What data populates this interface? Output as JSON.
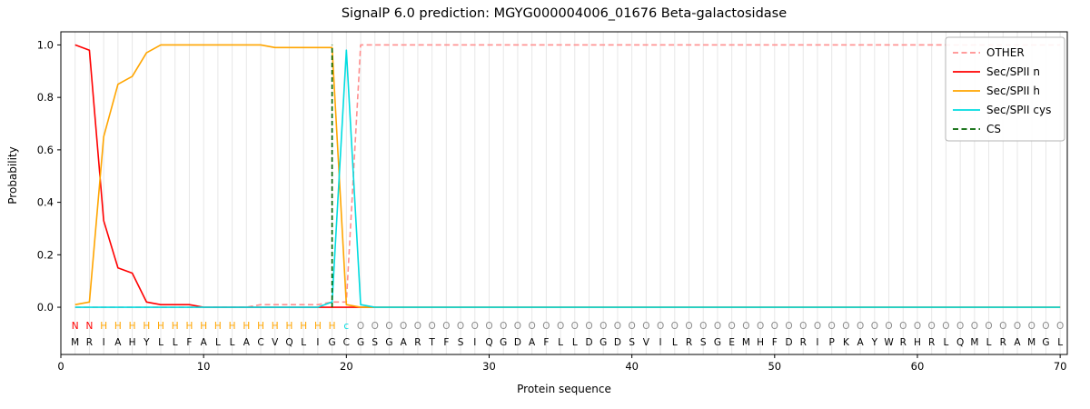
{
  "chart_data": {
    "type": "line",
    "title": "SignalP 6.0 prediction: MGYG000004006_01676 Beta-galactosidase",
    "xlabel": "Protein sequence",
    "ylabel": "Probability",
    "xlim": [
      0,
      70.5
    ],
    "ylim": [
      0.0,
      1.0
    ],
    "xticks": [
      0,
      10,
      20,
      30,
      40,
      50,
      60,
      70
    ],
    "yticks": [
      0.0,
      0.2,
      0.4,
      0.6,
      0.8,
      1.0
    ],
    "grid": "light vertical gridline at every residue position",
    "legend_position": "upper right",
    "x": [
      1,
      2,
      3,
      4,
      5,
      6,
      7,
      8,
      9,
      10,
      11,
      12,
      13,
      14,
      15,
      16,
      17,
      18,
      19,
      20,
      21,
      22,
      23,
      24,
      25,
      26,
      27,
      28,
      29,
      30,
      31,
      32,
      33,
      34,
      35,
      36,
      37,
      38,
      39,
      40,
      41,
      42,
      43,
      44,
      45,
      46,
      47,
      48,
      49,
      50,
      51,
      52,
      53,
      54,
      55,
      56,
      57,
      58,
      59,
      60,
      61,
      62,
      63,
      64,
      65,
      66,
      67,
      68,
      69,
      70
    ],
    "series": [
      {
        "name": "OTHER",
        "color": "#ff8f8f",
        "style": "dashed",
        "values": [
          0,
          0,
          0,
          0,
          0,
          0,
          0,
          0,
          0,
          0,
          0,
          0,
          0,
          0.01,
          0.01,
          0.01,
          0.01,
          0.01,
          0.02,
          0.02,
          1,
          1,
          1,
          1,
          1,
          1,
          1,
          1,
          1,
          1,
          1,
          1,
          1,
          1,
          1,
          1,
          1,
          1,
          1,
          1,
          1,
          1,
          1,
          1,
          1,
          1,
          1,
          1,
          1,
          1,
          1,
          1,
          1,
          1,
          1,
          1,
          1,
          1,
          1,
          1,
          1,
          1,
          1,
          1,
          1,
          1,
          1,
          1,
          1,
          1
        ]
      },
      {
        "name": "Sec/SPII n",
        "color": "#ff0000",
        "style": "solid",
        "values": [
          1.0,
          0.98,
          0.33,
          0.15,
          0.13,
          0.02,
          0.01,
          0.01,
          0.01,
          0,
          0,
          0,
          0,
          0,
          0,
          0,
          0,
          0,
          0,
          0,
          0,
          0,
          0,
          0,
          0,
          0,
          0,
          0,
          0,
          0,
          0,
          0,
          0,
          0,
          0,
          0,
          0,
          0,
          0,
          0,
          0,
          0,
          0,
          0,
          0,
          0,
          0,
          0,
          0,
          0,
          0,
          0,
          0,
          0,
          0,
          0,
          0,
          0,
          0,
          0,
          0,
          0,
          0,
          0,
          0,
          0,
          0,
          0,
          0,
          0
        ]
      },
      {
        "name": "Sec/SPII h",
        "color": "#ffa500",
        "style": "solid",
        "values": [
          0.01,
          0.02,
          0.65,
          0.85,
          0.88,
          0.97,
          1,
          1,
          1,
          1,
          1,
          1,
          1,
          1,
          0.99,
          0.99,
          0.99,
          0.99,
          0.99,
          0.01,
          0,
          0,
          0,
          0,
          0,
          0,
          0,
          0,
          0,
          0,
          0,
          0,
          0,
          0,
          0,
          0,
          0,
          0,
          0,
          0,
          0,
          0,
          0,
          0,
          0,
          0,
          0,
          0,
          0,
          0,
          0,
          0,
          0,
          0,
          0,
          0,
          0,
          0,
          0,
          0,
          0,
          0,
          0,
          0,
          0,
          0,
          0,
          0,
          0,
          0
        ]
      },
      {
        "name": "Sec/SPII cys",
        "color": "#00dce0",
        "style": "solid",
        "values": [
          0,
          0,
          0,
          0,
          0,
          0,
          0,
          0,
          0,
          0,
          0,
          0,
          0,
          0,
          0,
          0,
          0,
          0,
          0.02,
          0.98,
          0.01,
          0,
          0,
          0,
          0,
          0,
          0,
          0,
          0,
          0,
          0,
          0,
          0,
          0,
          0,
          0,
          0,
          0,
          0,
          0,
          0,
          0,
          0,
          0,
          0,
          0,
          0,
          0,
          0,
          0,
          0,
          0,
          0,
          0,
          0,
          0,
          0,
          0,
          0,
          0,
          0,
          0,
          0,
          0,
          0,
          0,
          0,
          0,
          0,
          0
        ]
      }
    ],
    "cs_marker": {
      "name": "CS",
      "color": "#006400",
      "style": "dashed",
      "x": 19,
      "y_span": [
        0.0,
        1.0
      ]
    },
    "annotation_rows": {
      "region_labels": "NNHHHHHHHHHHHHHHHHHcOOOOOOOOOOOOOOOOOOOOOOOOOOOOOOOOOOOOOOOOOOOOOOOOOO",
      "region_colors": {
        "N": "#ff0000",
        "H": "#ffa500",
        "c": "#00dce0",
        "O": "#8c8c8c"
      },
      "sequence": "MRIAHYLLFALLACVQLIGCGSGARTFSIQGDAFLLDGDSVILRSGEMHFDRIPKAYWRHRLQMLRAMGL"
    }
  }
}
